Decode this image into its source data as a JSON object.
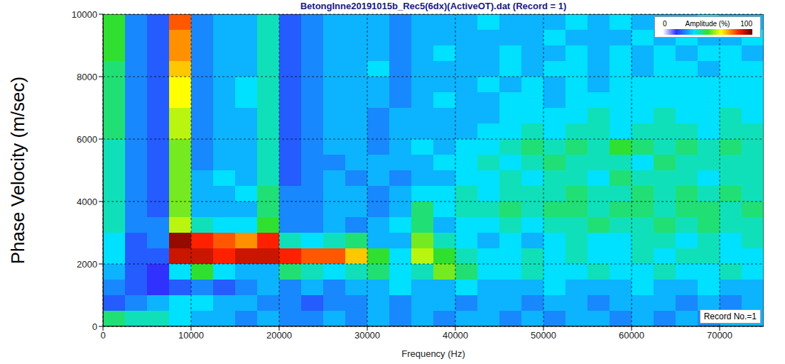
{
  "chart_data": {
    "type": "heatmap",
    "title": "BetongInne20191015b_Rec5(6dx)(ActiveOT).dat (Record = 1)",
    "x_label": "Frequency (Hz)",
    "y_label": "Phase Velocity (m/sec)",
    "xlim": [
      0,
      75000
    ],
    "ylim": [
      0,
      10000
    ],
    "xticks": [
      0,
      10000,
      20000,
      30000,
      40000,
      50000,
      60000,
      70000
    ],
    "yticks": [
      0,
      2000,
      4000,
      6000,
      8000,
      10000
    ],
    "grid": true,
    "x_bins": [
      0,
      2500,
      5000,
      7500,
      10000,
      12500,
      15000,
      17500,
      20000,
      22500,
      25000,
      27500,
      30000,
      32500,
      35000,
      37500,
      40000,
      42500,
      45000,
      47500,
      50000,
      52500,
      55000,
      57500,
      60000,
      62500,
      65000,
      67500,
      70000,
      72500,
      75000
    ],
    "y_bins": [
      0,
      500,
      1000,
      1500,
      2000,
      2500,
      3000,
      3500,
      4000,
      4500,
      5000,
      5500,
      6000,
      6500,
      7000,
      7500,
      8000,
      8500,
      9000,
      9500,
      10000
    ],
    "cells": [
      [
        45,
        40,
        40,
        35,
        30,
        30,
        25,
        30,
        25,
        25,
        30,
        25,
        30,
        25,
        30,
        25,
        30,
        30,
        25,
        30,
        25,
        30,
        30,
        25,
        30,
        25,
        30,
        25,
        30,
        30
      ],
      [
        20,
        25,
        30,
        35,
        35,
        30,
        30,
        25,
        25,
        20,
        25,
        25,
        30,
        25,
        30,
        30,
        25,
        30,
        30,
        25,
        30,
        30,
        25,
        30,
        30,
        30,
        25,
        30,
        25,
        30
      ],
      [
        25,
        20,
        15,
        20,
        25,
        20,
        25,
        30,
        25,
        30,
        25,
        30,
        30,
        35,
        30,
        30,
        35,
        30,
        30,
        30,
        35,
        30,
        30,
        30,
        35,
        30,
        30,
        35,
        30,
        30
      ],
      [
        30,
        20,
        15,
        35,
        50,
        35,
        30,
        30,
        45,
        40,
        35,
        40,
        45,
        35,
        40,
        55,
        45,
        35,
        35,
        40,
        35,
        35,
        40,
        35,
        35,
        40,
        35,
        35,
        40,
        35
      ],
      [
        35,
        20,
        20,
        90,
        90,
        85,
        90,
        90,
        85,
        80,
        80,
        70,
        50,
        35,
        60,
        50,
        40,
        35,
        35,
        40,
        35,
        40,
        35,
        35,
        40,
        35,
        40,
        40,
        35,
        35
      ],
      [
        35,
        20,
        25,
        95,
        85,
        80,
        75,
        85,
        40,
        35,
        40,
        45,
        30,
        30,
        55,
        40,
        35,
        30,
        35,
        30,
        35,
        40,
        35,
        35,
        40,
        40,
        35,
        40,
        35,
        40
      ],
      [
        40,
        25,
        25,
        60,
        40,
        35,
        35,
        50,
        25,
        25,
        30,
        25,
        30,
        35,
        45,
        30,
        35,
        35,
        40,
        35,
        40,
        40,
        45,
        40,
        40,
        45,
        40,
        45,
        40,
        40
      ],
      [
        40,
        25,
        20,
        55,
        30,
        30,
        30,
        45,
        25,
        25,
        30,
        30,
        25,
        30,
        45,
        35,
        40,
        40,
        45,
        40,
        45,
        45,
        40,
        45,
        45,
        40,
        45,
        45,
        40,
        45
      ],
      [
        40,
        25,
        20,
        55,
        30,
        30,
        35,
        45,
        25,
        25,
        30,
        30,
        25,
        30,
        35,
        35,
        40,
        35,
        40,
        40,
        40,
        45,
        40,
        40,
        45,
        40,
        45,
        40,
        45,
        40
      ],
      [
        40,
        25,
        20,
        55,
        30,
        35,
        30,
        40,
        20,
        25,
        30,
        25,
        30,
        25,
        30,
        30,
        35,
        35,
        40,
        35,
        40,
        40,
        35,
        45,
        40,
        40,
        40,
        35,
        40,
        40
      ],
      [
        40,
        25,
        20,
        55,
        25,
        30,
        30,
        40,
        20,
        25,
        25,
        30,
        30,
        30,
        30,
        35,
        35,
        40,
        35,
        40,
        45,
        40,
        40,
        40,
        35,
        45,
        40,
        40,
        40,
        40
      ],
      [
        40,
        25,
        20,
        55,
        25,
        30,
        30,
        40,
        20,
        25,
        30,
        30,
        25,
        30,
        35,
        30,
        35,
        35,
        40,
        45,
        40,
        45,
        40,
        50,
        45,
        40,
        45,
        40,
        45,
        40
      ],
      [
        45,
        25,
        20,
        60,
        25,
        30,
        30,
        40,
        20,
        25,
        30,
        30,
        25,
        30,
        30,
        30,
        30,
        35,
        35,
        40,
        35,
        40,
        40,
        35,
        40,
        40,
        40,
        35,
        40,
        40
      ],
      [
        45,
        25,
        20,
        60,
        25,
        30,
        30,
        40,
        20,
        25,
        30,
        30,
        25,
        30,
        30,
        30,
        30,
        30,
        35,
        35,
        35,
        35,
        40,
        35,
        35,
        40,
        35,
        35,
        40,
        35
      ],
      [
        45,
        25,
        20,
        65,
        25,
        30,
        35,
        40,
        20,
        25,
        30,
        30,
        30,
        25,
        30,
        35,
        30,
        30,
        35,
        35,
        30,
        35,
        35,
        35,
        35,
        35,
        35,
        35,
        35,
        35
      ],
      [
        45,
        25,
        20,
        65,
        25,
        30,
        35,
        40,
        20,
        25,
        30,
        30,
        30,
        25,
        30,
        30,
        30,
        35,
        30,
        35,
        30,
        35,
        30,
        35,
        35,
        35,
        35,
        35,
        35,
        35
      ],
      [
        45,
        25,
        20,
        70,
        25,
        30,
        30,
        40,
        20,
        25,
        30,
        30,
        35,
        25,
        30,
        30,
        30,
        30,
        35,
        30,
        35,
        35,
        30,
        35,
        30,
        35,
        35,
        30,
        35,
        35
      ],
      [
        50,
        25,
        20,
        75,
        25,
        30,
        30,
        40,
        20,
        25,
        30,
        30,
        30,
        25,
        30,
        35,
        30,
        30,
        35,
        30,
        30,
        35,
        30,
        35,
        30,
        35,
        30,
        35,
        35,
        30
      ],
      [
        50,
        25,
        20,
        75,
        25,
        30,
        30,
        40,
        20,
        25,
        30,
        30,
        30,
        25,
        30,
        30,
        30,
        30,
        30,
        30,
        35,
        30,
        30,
        30,
        35,
        30,
        35,
        30,
        30,
        35
      ],
      [
        50,
        25,
        20,
        80,
        25,
        30,
        30,
        40,
        20,
        25,
        30,
        30,
        30,
        25,
        30,
        30,
        30,
        35,
        30,
        30,
        30,
        35,
        30,
        35,
        30,
        30,
        30,
        35,
        30,
        30
      ]
    ],
    "colorbar": {
      "label": "Amplitude (%)",
      "range": [
        0,
        100
      ],
      "ticks": [
        0,
        100
      ]
    },
    "annotations": [
      "Record No.=1"
    ]
  }
}
